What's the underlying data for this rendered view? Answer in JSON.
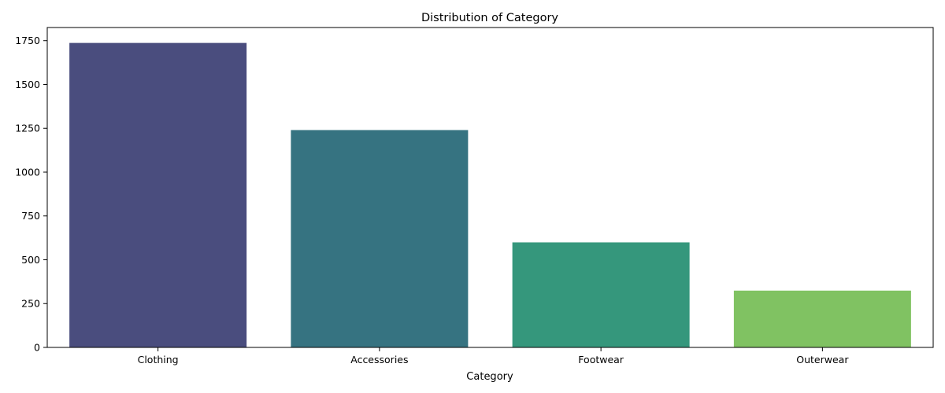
{
  "chart_data": {
    "type": "bar",
    "title": "Distribution of Category",
    "xlabel": "Category",
    "ylabel": "",
    "categories": [
      "Clothing",
      "Accessories",
      "Footwear",
      "Outerwear"
    ],
    "values": [
      1737,
      1240,
      599,
      324
    ],
    "colors": [
      "#4a4d7e",
      "#367381",
      "#35977c",
      "#80c262"
    ],
    "ylim": [
      0,
      1825
    ],
    "yticks": [
      0,
      250,
      500,
      750,
      1000,
      1250,
      1500,
      1750
    ],
    "grid": false,
    "legend": "none"
  }
}
